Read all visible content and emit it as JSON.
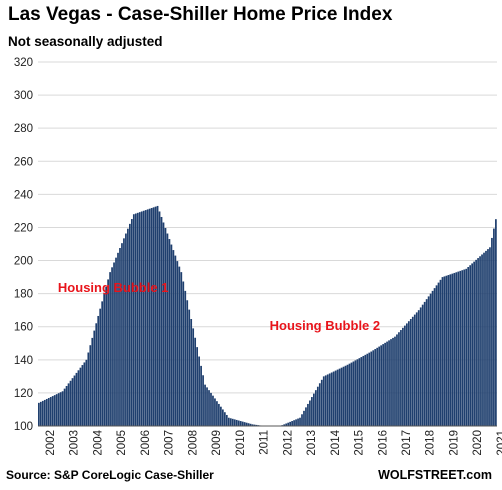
{
  "title": "Las Vegas - Case-Shiller Home Price Index",
  "subtitle": "Not seasonally adjusted",
  "source": "Source: S&P CoreLogic Case-Shiller",
  "brand": "WOLFSTREET.com",
  "colors": {
    "bar": "#1f3f6e",
    "annotation": "#e8141b",
    "grid": "#d9d9d9"
  },
  "chart_data": {
    "type": "bar",
    "title": "Las Vegas - Case-Shiller Home Price Index",
    "subtitle": "Not seasonally adjusted",
    "frequency": "monthly",
    "start": "2002-01",
    "end": "2021-04",
    "ylim": [
      100,
      320
    ],
    "yticks": [
      100,
      120,
      140,
      160,
      180,
      200,
      220,
      240,
      260,
      280,
      300,
      320
    ],
    "xticks": [
      "2002",
      "2003",
      "2004",
      "2005",
      "2006",
      "2007",
      "2008",
      "2009",
      "2010",
      "2011",
      "2012",
      "2013",
      "2014",
      "2015",
      "2016",
      "2017",
      "2018",
      "2019",
      "2020",
      "2021"
    ],
    "grid": "horizontal",
    "annual_anchors": [
      {
        "year": 2002,
        "value": 114
      },
      {
        "year": 2003,
        "value": 121
      },
      {
        "year": 2004,
        "value": 140
      },
      {
        "year": 2005,
        "value": 193
      },
      {
        "year": 2006,
        "value": 228
      },
      {
        "year": 2007,
        "value": 233
      },
      {
        "year": 2008,
        "value": 193
      },
      {
        "year": 2009,
        "value": 125
      },
      {
        "year": 2010,
        "value": 105
      },
      {
        "year": 2011,
        "value": 101
      },
      {
        "year": 2012,
        "value": 99
      },
      {
        "year": 2013,
        "value": 105
      },
      {
        "year": 2014,
        "value": 130
      },
      {
        "year": 2015,
        "value": 137
      },
      {
        "year": 2016,
        "value": 145
      },
      {
        "year": 2017,
        "value": 154
      },
      {
        "year": 2018,
        "value": 170
      },
      {
        "year": 2019,
        "value": 190
      },
      {
        "year": 2020,
        "value": 195
      },
      {
        "year": 2021,
        "value": 208
      }
    ],
    "last_value": {
      "date": "2021-04",
      "value": 225
    },
    "annotations": [
      {
        "text": "Housing Bubble 1",
        "x": "2005-03",
        "y": 184
      },
      {
        "text": "Housing Bubble 2",
        "x": "2014-02",
        "y": 161
      }
    ]
  }
}
